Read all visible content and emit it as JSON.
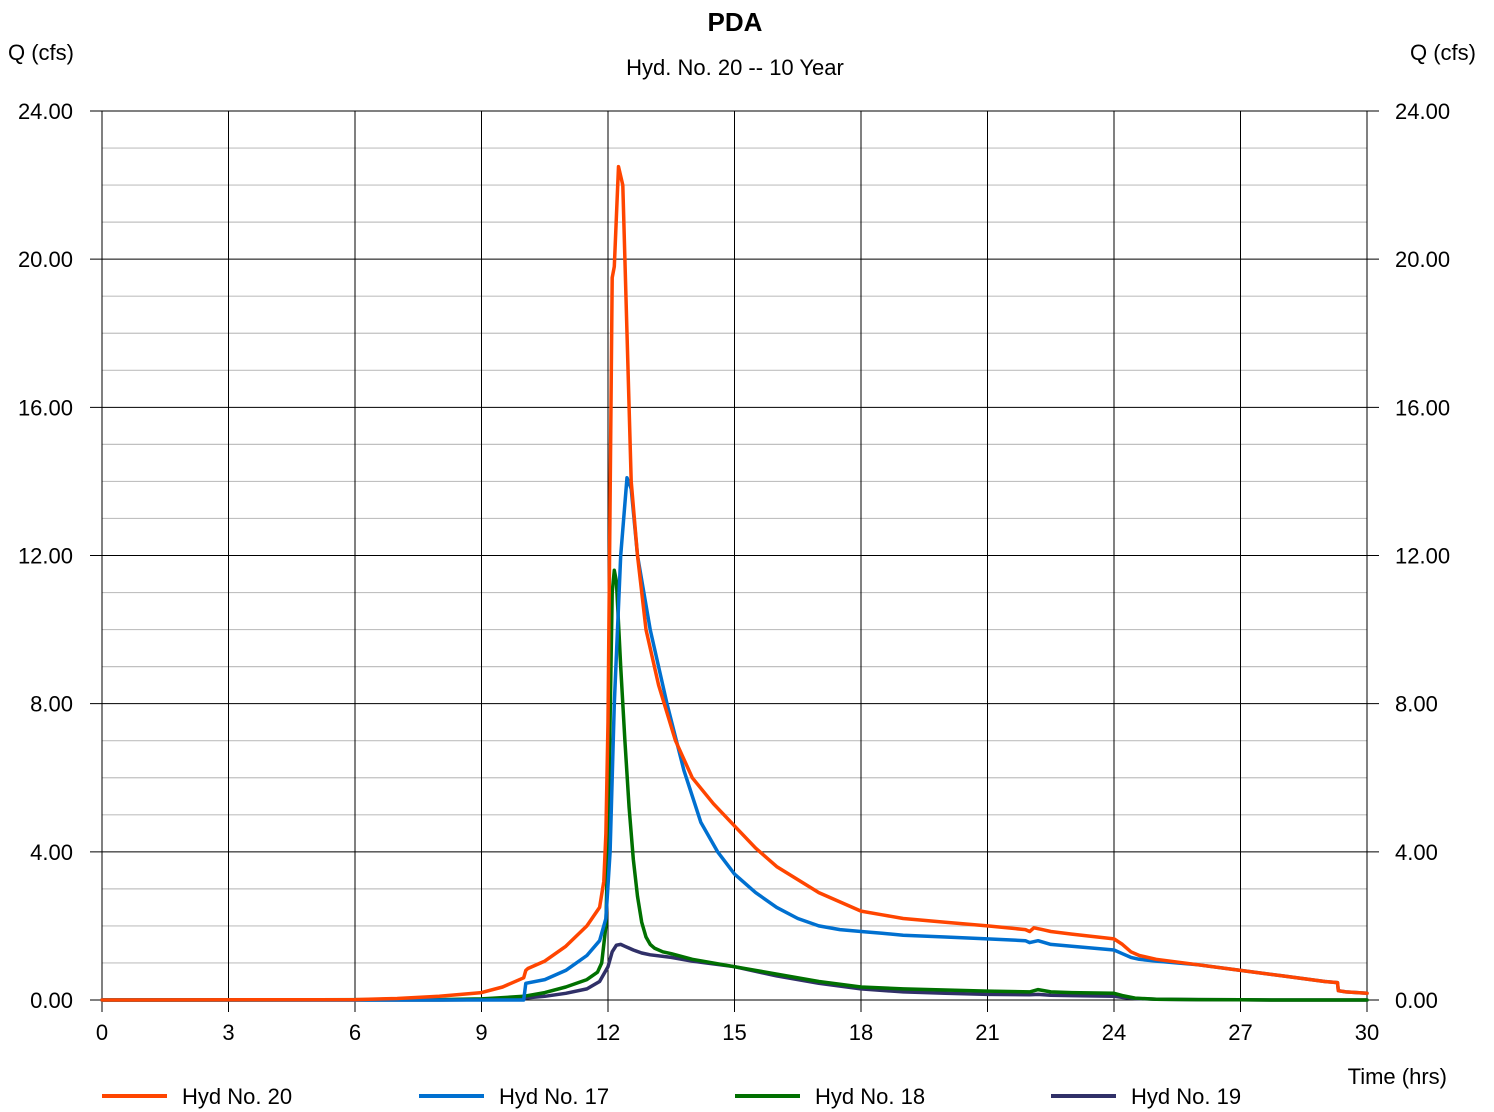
{
  "chart_data": {
    "type": "line",
    "title": "PDA",
    "subtitle": "Hyd. No. 20 -- 10 Year",
    "ylabel_left": "Q (cfs)",
    "ylabel_right": "Q (cfs)",
    "xlabel": "Time (hrs)",
    "xlim": [
      0,
      30
    ],
    "ylim": [
      0,
      24
    ],
    "x_ticks": [
      0,
      3,
      6,
      9,
      12,
      15,
      18,
      21,
      24,
      27,
      30
    ],
    "x_tick_labels": [
      "0",
      "3",
      "6",
      "9",
      "12",
      "15",
      "18",
      "21",
      "24",
      "27",
      "30"
    ],
    "y_ticks": [
      0,
      4,
      8,
      12,
      16,
      20,
      24
    ],
    "y_tick_labels": [
      "0.00",
      "4.00",
      "8.00",
      "12.00",
      "16.00",
      "20.00",
      "24.00"
    ],
    "y_minor_step": 1,
    "grid": true,
    "legend_position": "bottom",
    "series": [
      {
        "name": "Hyd No. 20",
        "color": "#ff4500",
        "x": [
          0,
          6,
          7,
          8,
          9,
          9.5,
          10.0,
          10.05,
          10.1,
          10.5,
          11.0,
          11.5,
          11.8,
          11.9,
          11.95,
          12.0,
          12.1,
          12.15,
          12.25,
          12.35,
          12.45,
          12.55,
          12.7,
          12.9,
          13.2,
          13.6,
          14.0,
          14.5,
          15.0,
          15.5,
          16.0,
          17.0,
          18.0,
          18.5,
          19.0,
          20.0,
          21.0,
          21.9,
          22.0,
          22.1,
          22.3,
          22.5,
          23.0,
          24.0,
          24.2,
          24.4,
          24.6,
          25.0,
          26.0,
          27.0,
          28.0,
          29.0,
          29.3,
          29.32,
          29.5,
          30.0
        ],
        "y": [
          0,
          0.01,
          0.04,
          0.1,
          0.2,
          0.35,
          0.6,
          0.8,
          0.85,
          1.05,
          1.45,
          2.0,
          2.5,
          3.2,
          4.5,
          7.5,
          19.5,
          19.8,
          22.5,
          22.0,
          18.0,
          14.0,
          12.0,
          10.0,
          8.5,
          7.0,
          6.0,
          5.3,
          4.7,
          4.1,
          3.6,
          2.9,
          2.4,
          2.3,
          2.2,
          2.1,
          2.0,
          1.9,
          1.85,
          1.95,
          1.9,
          1.85,
          1.78,
          1.65,
          1.5,
          1.3,
          1.2,
          1.1,
          0.95,
          0.8,
          0.65,
          0.5,
          0.47,
          0.25,
          0.22,
          0.18
        ]
      },
      {
        "name": "Hyd No. 17",
        "color": "#0070d0",
        "x": [
          0,
          6,
          8,
          10.0,
          10.05,
          10.5,
          11.0,
          11.5,
          11.8,
          11.95,
          12.05,
          12.15,
          12.3,
          12.45,
          12.55,
          12.7,
          13.0,
          13.4,
          13.8,
          14.2,
          14.6,
          15.0,
          15.5,
          16.0,
          16.5,
          17.0,
          17.5,
          18.0,
          18.5,
          19.0,
          20.0,
          21.0,
          21.9,
          22.0,
          22.2,
          22.5,
          23.0,
          24.0,
          24.2,
          24.4,
          24.6,
          25.0,
          26.0,
          27.0,
          28.0,
          29.0,
          29.3,
          29.32,
          29.5,
          30.0
        ],
        "y": [
          0,
          0,
          0,
          0,
          0.45,
          0.55,
          0.8,
          1.2,
          1.6,
          2.2,
          4.0,
          8.0,
          12.0,
          14.1,
          13.8,
          12.0,
          10.0,
          8.0,
          6.2,
          4.8,
          4.0,
          3.4,
          2.9,
          2.5,
          2.2,
          2.0,
          1.9,
          1.85,
          1.8,
          1.75,
          1.7,
          1.65,
          1.6,
          1.55,
          1.6,
          1.5,
          1.45,
          1.35,
          1.25,
          1.15,
          1.1,
          1.05,
          0.95,
          0.8,
          0.65,
          0.5,
          0.47,
          0.25,
          0.22,
          0.18
        ]
      },
      {
        "name": "Hyd No. 18",
        "color": "#007000",
        "x": [
          0,
          8,
          9,
          10,
          10.5,
          11.0,
          11.5,
          11.75,
          11.85,
          11.95,
          12.02,
          12.1,
          12.15,
          12.2,
          12.3,
          12.4,
          12.5,
          12.6,
          12.7,
          12.8,
          12.9,
          13.0,
          13.1,
          13.3,
          13.5,
          14.0,
          15.0,
          16.0,
          17.0,
          18.0,
          19.0,
          20.0,
          21.0,
          22.0,
          22.2,
          22.5,
          23.0,
          24.0,
          24.2,
          24.5,
          25.0,
          26.0,
          27.0,
          28.0,
          30.0
        ],
        "y": [
          0,
          0.01,
          0.03,
          0.1,
          0.2,
          0.35,
          0.55,
          0.75,
          1.0,
          2.0,
          5.5,
          11.0,
          11.6,
          11.3,
          9.0,
          7.0,
          5.2,
          3.8,
          2.8,
          2.1,
          1.7,
          1.5,
          1.4,
          1.3,
          1.25,
          1.1,
          0.9,
          0.7,
          0.5,
          0.35,
          0.3,
          0.27,
          0.24,
          0.22,
          0.28,
          0.22,
          0.2,
          0.18,
          0.12,
          0.05,
          0.02,
          0.01,
          0.005,
          0,
          0
        ]
      },
      {
        "name": "Hyd No. 19",
        "color": "#303068",
        "x": [
          0,
          8,
          9,
          10,
          10.5,
          11.0,
          11.5,
          11.8,
          12.0,
          12.1,
          12.2,
          12.3,
          12.4,
          12.5,
          12.6,
          12.8,
          13.0,
          13.5,
          14.0,
          15.0,
          16.0,
          17.0,
          18.0,
          19.0,
          20.0,
          21.0,
          22.0,
          22.2,
          22.5,
          23.0,
          24.0,
          24.2,
          24.5,
          25.0,
          26.0,
          27.0,
          28.0,
          30.0
        ],
        "y": [
          0,
          0,
          0.01,
          0.05,
          0.1,
          0.18,
          0.3,
          0.5,
          0.9,
          1.3,
          1.48,
          1.5,
          1.45,
          1.4,
          1.35,
          1.27,
          1.22,
          1.15,
          1.05,
          0.9,
          0.65,
          0.45,
          0.3,
          0.22,
          0.18,
          0.15,
          0.14,
          0.15,
          0.13,
          0.12,
          0.1,
          0.07,
          0.04,
          0.02,
          0.01,
          0.005,
          0,
          0
        ]
      }
    ]
  }
}
